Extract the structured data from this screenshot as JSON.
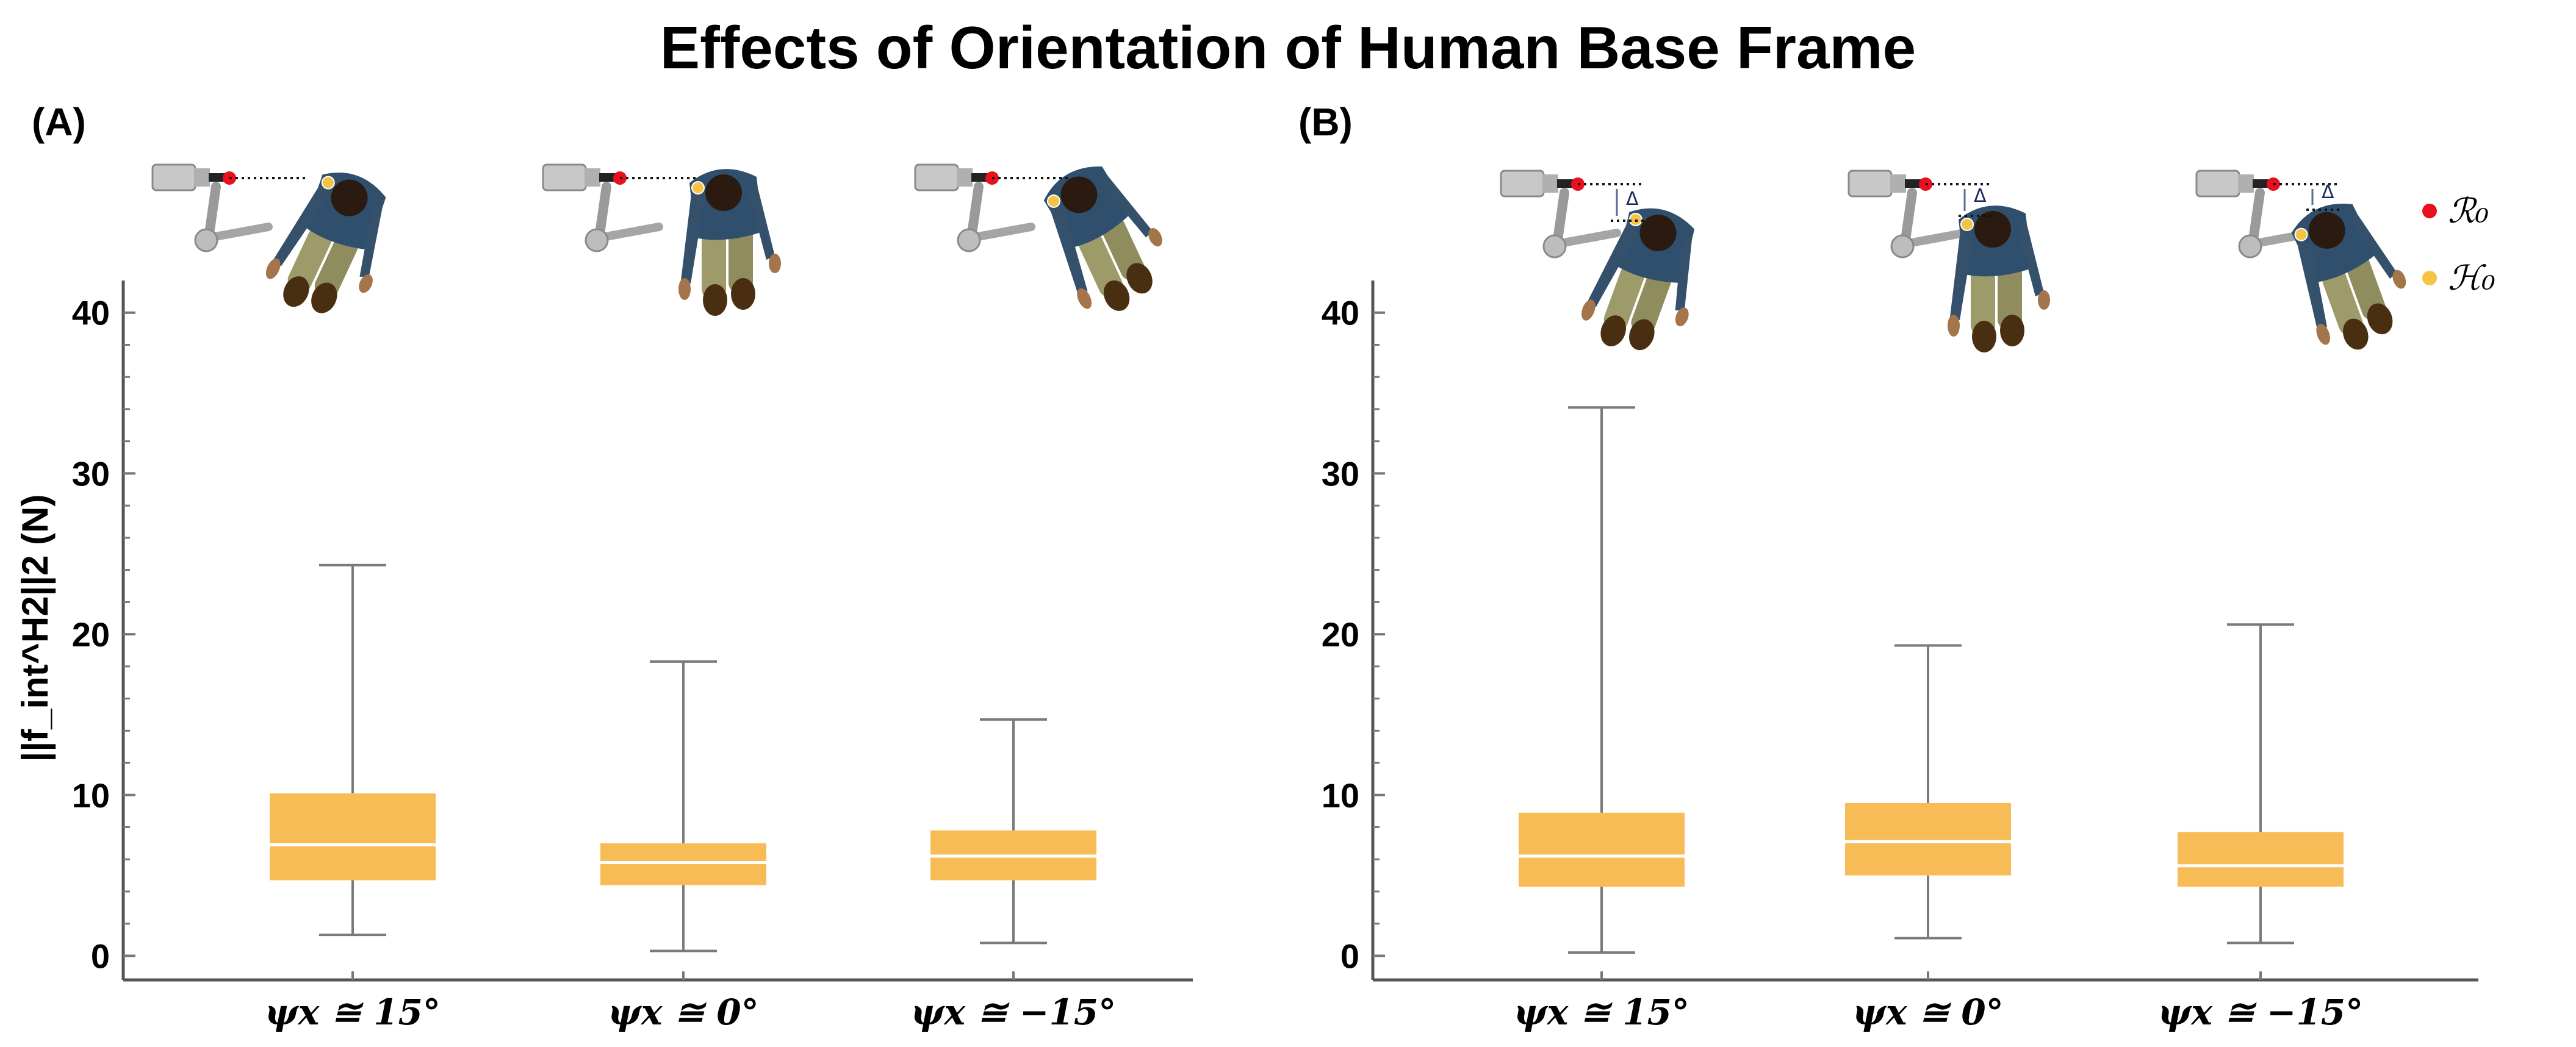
{
  "figure_title": "Effects of Orientation of Human Base Frame",
  "ylabel": "||f_int^H2||2 (N)",
  "legend": [
    {
      "label": "ℛ₀",
      "color": "#e8101c"
    },
    {
      "label": "ℋ₀",
      "color": "#f6c445"
    }
  ],
  "diagram": {
    "delta_label": "Δ"
  },
  "colors": {
    "box": "#f8bc57",
    "median": "#ffffff",
    "whisker": "#7a7a7a",
    "axis": "#555555"
  },
  "chart_data": [
    {
      "type": "boxplot",
      "panel": "(A)",
      "categories": [
        "ψx ≅ 15°",
        "ψx ≅ 0°",
        "ψx ≅ −15°"
      ],
      "boxes": [
        {
          "min": 1.3,
          "q1": 4.7,
          "median": 6.9,
          "q3": 10.1,
          "max": 24.3
        },
        {
          "min": 0.3,
          "q1": 4.4,
          "median": 5.8,
          "q3": 7.0,
          "max": 18.3
        },
        {
          "min": 0.8,
          "q1": 4.7,
          "median": 6.2,
          "q3": 7.8,
          "max": 14.7
        }
      ],
      "yticks": [
        0,
        10,
        20,
        30,
        40
      ],
      "ylim": [
        -1.5,
        42
      ]
    },
    {
      "type": "boxplot",
      "panel": "(B)",
      "categories": [
        "ψx ≅ 15°",
        "ψx ≅ 0°",
        "ψx ≅ −15°"
      ],
      "boxes": [
        {
          "min": 0.2,
          "q1": 4.3,
          "median": 6.2,
          "q3": 8.9,
          "max": 34.1
        },
        {
          "min": 1.1,
          "q1": 5.0,
          "median": 7.1,
          "q3": 9.5,
          "max": 19.3
        },
        {
          "min": 0.8,
          "q1": 4.3,
          "median": 5.6,
          "q3": 7.7,
          "max": 20.6
        }
      ],
      "yticks": [
        0,
        10,
        20,
        30,
        40
      ],
      "ylim": [
        -1.5,
        42
      ]
    }
  ]
}
